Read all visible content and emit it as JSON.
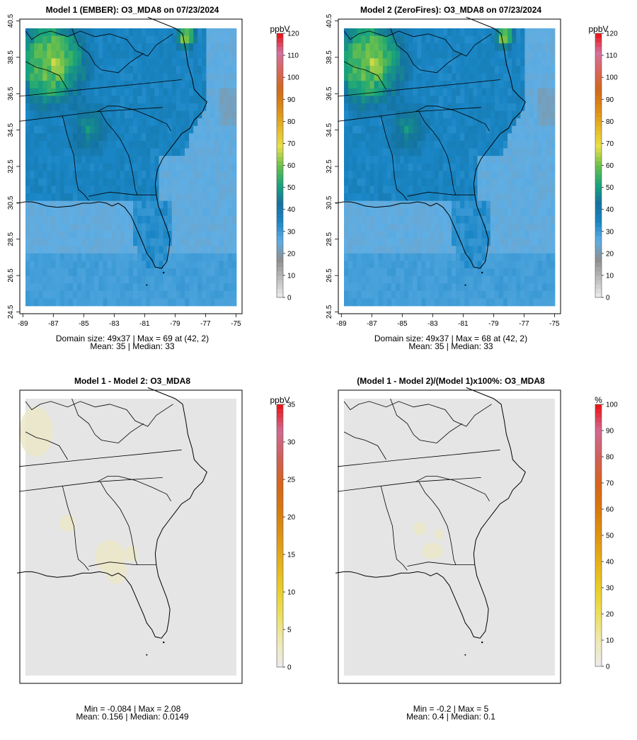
{
  "colors": {
    "background": "#ffffff",
    "water": "#52a8e0",
    "diff_fill": "#e5e5e5",
    "frame": "#000000",
    "ramp_abs": [
      "#ececec",
      "#bdbdbd",
      "#8e8e8e",
      "#5faee4",
      "#1a86c6",
      "#14729f",
      "#1aa57a",
      "#6cc04a",
      "#e8e04a",
      "#e6b628",
      "#dd8c18",
      "#d0691a",
      "#d9665a",
      "#d4709e",
      "#ea1010"
    ],
    "ramp_diff": [
      "#ececec",
      "#eee9b2",
      "#ecdf5e",
      "#e8cd28",
      "#e6b01a",
      "#df9414",
      "#d8790e",
      "#d5641c",
      "#d0605a",
      "#d06a92",
      "#ee1010"
    ]
  },
  "chart_data": [
    {
      "id": "model1",
      "type": "heatmap",
      "title": "Model 1 (EMBER): O3_MDA8 on 07/23/2024",
      "xlim": [
        -89.2,
        -74.6
      ],
      "ylim": [
        24.4,
        40.6
      ],
      "x_ticks": [
        "-89",
        "-87",
        "-85",
        "-83",
        "-81",
        "-79",
        "-77",
        "-75"
      ],
      "y_ticks": [
        "24.5",
        "26.5",
        "28.5",
        "30.5",
        "32.5",
        "34.5",
        "36.5",
        "38.5",
        "40.5"
      ],
      "colorbar": {
        "unit": "ppbV",
        "range": [
          0,
          120
        ],
        "ticks": [
          "0",
          "10",
          "20",
          "30",
          "40",
          "50",
          "60",
          "70",
          "80",
          "90",
          "100",
          "110",
          "120"
        ]
      },
      "stats": [
        "Domain size: 49x37 | Max = 69 at (42, 2)",
        "Mean: 35 |  Median: 33"
      ],
      "grid_cols": 49,
      "grid_rows": 37,
      "max": 69,
      "mean": 35,
      "median": 33
    },
    {
      "id": "model2",
      "type": "heatmap",
      "title": "Model 2 (ZeroFires): O3_MDA8 on 07/23/2024",
      "xlim": [
        -89.2,
        -74.6
      ],
      "ylim": [
        24.4,
        40.6
      ],
      "x_ticks": [
        "-89",
        "-87",
        "-85",
        "-83",
        "-81",
        "-79",
        "-77",
        "-75"
      ],
      "y_ticks": [
        "24.5",
        "26.5",
        "28.5",
        "30.5",
        "32.5",
        "34.5",
        "36.5",
        "38.5",
        "40.5"
      ],
      "colorbar": {
        "unit": "ppbV",
        "range": [
          0,
          120
        ],
        "ticks": [
          "0",
          "10",
          "20",
          "30",
          "40",
          "50",
          "60",
          "70",
          "80",
          "90",
          "100",
          "110",
          "120"
        ]
      },
      "stats": [
        "Domain size: 49x37 | Max = 68 at (42, 2)",
        "Mean: 35 |  Median: 33"
      ],
      "grid_cols": 49,
      "grid_rows": 37,
      "max": 68,
      "mean": 35,
      "median": 33
    },
    {
      "id": "diff",
      "type": "heatmap",
      "title": "Model 1 - Model 2: O3_MDA8",
      "colorbar": {
        "unit": "ppbV",
        "range": [
          0,
          35
        ],
        "ticks": [
          "0",
          "5",
          "10",
          "15",
          "20",
          "25",
          "30",
          "35"
        ]
      },
      "stats": [
        "Min = -0.084 | Max = 2.08",
        "Mean: 0.156 |  Median: 0.0149"
      ],
      "min": -0.084,
      "max": 2.08,
      "mean": 0.156,
      "median": 0.0149
    },
    {
      "id": "pct",
      "type": "heatmap",
      "title": "(Model 1 - Model 2)/(Model 1)x100%: O3_MDA8",
      "colorbar": {
        "unit": "%",
        "range": [
          0,
          100
        ],
        "ticks": [
          "0",
          "10",
          "20",
          "30",
          "40",
          "50",
          "60",
          "70",
          "80",
          "90",
          "100"
        ]
      },
      "stats": [
        "Min = -0.2 | Max = 5",
        "Mean: 0.4 |  Median: 0.1"
      ],
      "min": -0.2,
      "max": 5,
      "mean": 0.4,
      "median": 0.1
    }
  ]
}
